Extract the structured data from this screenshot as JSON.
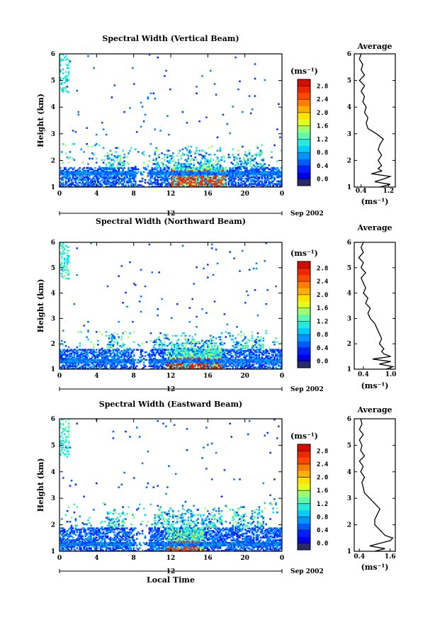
{
  "chart_data": [
    {
      "type": "heatmap",
      "title": "Spectral Width (Vertical Beam)",
      "ylabel": "Height (km)",
      "xlim": [
        0,
        24
      ],
      "ylim": [
        1,
        6
      ],
      "x_ticks": [
        "0",
        "4",
        "8",
        "12",
        "16",
        "20",
        "0"
      ],
      "y_ticks": [
        "1",
        "2",
        "3",
        "4",
        "5",
        "6"
      ],
      "day_label": "12",
      "date_label": "Sep 2002",
      "colorbar": {
        "unit": "(ms⁻¹)",
        "ticks": [
          "0.0",
          "0.4",
          "0.8",
          "1.2",
          "1.6",
          "2.0",
          "2.4",
          "2.8"
        ],
        "range": [
          -0.2,
          3.0
        ]
      },
      "cloud": {
        "top": 2.6,
        "core_top": 1.75,
        "layer_lo": 1.45,
        "layer_hi": 1.6,
        "strong_start": 12.0,
        "strong_end": 18.0,
        "strong_level": 2.8,
        "gap": [
          8.2,
          9.6
        ]
      },
      "average_profile": {
        "title": "Average",
        "xlabel": "(ms⁻¹)",
        "x_ticks": [
          "0.4",
          "1.2"
        ],
        "xlim": [
          0.2,
          1.4
        ],
        "heights": [
          1.0,
          1.1,
          1.2,
          1.3,
          1.4,
          1.5,
          1.6,
          1.7,
          1.8,
          1.9,
          2.0,
          2.2,
          2.4,
          2.6,
          2.8,
          3.0,
          3.2,
          3.4,
          3.6,
          3.8,
          4.0,
          4.2,
          4.4,
          4.6,
          4.8,
          5.0,
          5.2,
          5.4,
          5.6,
          5.8,
          6.0
        ],
        "values": [
          0.95,
          1.25,
          0.8,
          1.05,
          1.25,
          0.7,
          1.0,
          0.9,
          1.0,
          0.95,
          0.9,
          1.0,
          0.9,
          0.95,
          1.05,
          0.85,
          0.6,
          0.55,
          0.6,
          0.5,
          0.55,
          0.45,
          0.5,
          0.4,
          0.5,
          0.35,
          0.5,
          0.4,
          0.45,
          0.35,
          0.4
        ]
      }
    },
    {
      "type": "heatmap",
      "title": "Spectral Width (Northward Beam)",
      "ylabel": "Height (km)",
      "xlim": [
        0,
        24
      ],
      "ylim": [
        1,
        6
      ],
      "x_ticks": [
        "0",
        "4",
        "8",
        "12",
        "16",
        "20",
        "0"
      ],
      "y_ticks": [
        "1",
        "2",
        "3",
        "4",
        "5",
        "6"
      ],
      "day_label": "12",
      "date_label": "Sep 2002",
      "colorbar": {
        "unit": "(ms⁻¹)",
        "ticks": [
          "0.0",
          "0.4",
          "0.8",
          "1.2",
          "1.6",
          "2.0",
          "2.4",
          "2.8"
        ],
        "range": [
          -0.2,
          3.0
        ]
      },
      "cloud": {
        "top": 2.5,
        "core_top": 1.8,
        "layer_lo": 1.25,
        "layer_hi": 1.4,
        "strong_start": 11.5,
        "strong_end": 17.5,
        "strong_level": 2.9,
        "gap": [
          8.0,
          9.5
        ]
      },
      "average_profile": {
        "title": "Average",
        "xlabel": "(ms⁻¹)",
        "x_ticks": [
          "0.4",
          "1.0"
        ],
        "xlim": [
          0.2,
          1.1
        ],
        "heights": [
          1.0,
          1.1,
          1.2,
          1.3,
          1.4,
          1.5,
          1.6,
          1.7,
          1.8,
          1.9,
          2.0,
          2.2,
          2.4,
          2.6,
          2.8,
          3.0,
          3.2,
          3.4,
          3.6,
          3.8,
          4.0,
          4.2,
          4.4,
          4.6,
          4.8,
          5.0,
          5.2,
          5.4,
          5.6,
          5.8,
          6.0
        ],
        "values": [
          0.9,
          1.05,
          0.75,
          1.0,
          0.6,
          1.0,
          0.85,
          0.8,
          0.85,
          0.8,
          0.75,
          0.8,
          0.75,
          0.7,
          0.65,
          0.55,
          0.5,
          0.55,
          0.45,
          0.5,
          0.4,
          0.45,
          0.4,
          0.35,
          0.45,
          0.35,
          0.4,
          0.3,
          0.4,
          0.35,
          0.4
        ]
      }
    },
    {
      "type": "heatmap",
      "title": "Spectral Width (Eastward Beam)",
      "ylabel": "Height (km)",
      "xlabel": "Local Time",
      "xlim": [
        0,
        24
      ],
      "ylim": [
        1,
        6
      ],
      "x_ticks": [
        "0",
        "4",
        "8",
        "12",
        "16",
        "20",
        "0"
      ],
      "y_ticks": [
        "1",
        "2",
        "3",
        "4",
        "5",
        "6"
      ],
      "day_label": "12",
      "date_label": "Sep 2002",
      "colorbar": {
        "unit": "(ms⁻¹)",
        "ticks": [
          "0.0",
          "0.4",
          "0.8",
          "1.2",
          "1.6",
          "2.0",
          "2.4",
          "2.8"
        ],
        "range": [
          -0.2,
          3.0
        ]
      },
      "cloud": {
        "top": 2.8,
        "core_top": 1.9,
        "layer_lo": 1.2,
        "layer_hi": 1.35,
        "strong_start": 11.5,
        "strong_end": 15.5,
        "strong_level": 2.8,
        "gap": [
          8.0,
          9.6
        ]
      },
      "average_profile": {
        "title": "Average",
        "xlabel": "(ms⁻¹)",
        "x_ticks": [
          "0.4",
          "1.6"
        ],
        "xlim": [
          0.2,
          1.8
        ],
        "heights": [
          1.0,
          1.1,
          1.2,
          1.3,
          1.4,
          1.5,
          1.6,
          1.7,
          1.8,
          1.9,
          2.0,
          2.2,
          2.4,
          2.6,
          2.8,
          3.0,
          3.2,
          3.4,
          3.6,
          3.8,
          4.0,
          4.2,
          4.4,
          4.6,
          4.8,
          5.0,
          5.2,
          5.4,
          5.6,
          5.8,
          6.0
        ],
        "values": [
          1.0,
          1.4,
          0.8,
          1.2,
          1.6,
          1.7,
          1.4,
          1.3,
          1.2,
          1.1,
          1.0,
          1.0,
          1.1,
          1.2,
          1.0,
          0.8,
          0.6,
          0.55,
          0.5,
          0.6,
          0.45,
          0.55,
          0.4,
          0.6,
          0.45,
          0.5,
          0.4,
          0.55,
          0.4,
          0.5,
          0.45
        ]
      }
    }
  ]
}
